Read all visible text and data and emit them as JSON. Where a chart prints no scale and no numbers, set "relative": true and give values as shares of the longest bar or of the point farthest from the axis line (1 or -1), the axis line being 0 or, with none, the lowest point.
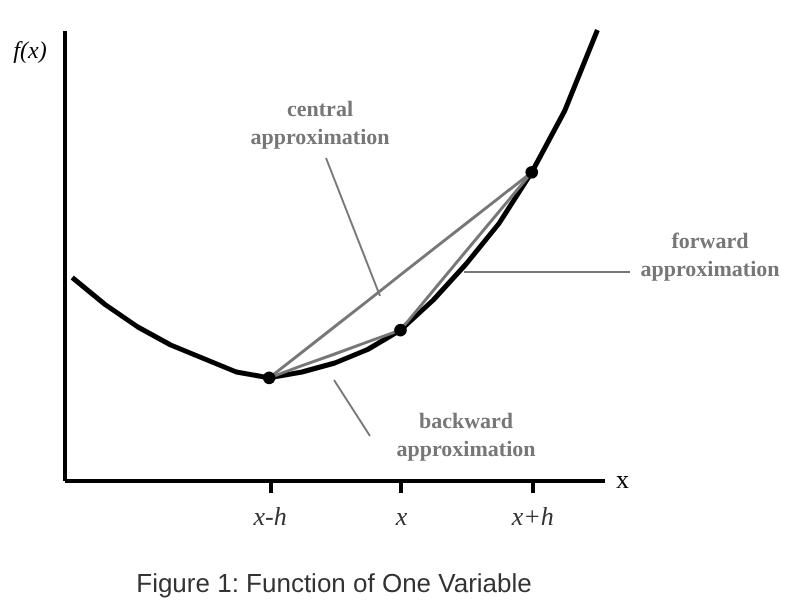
{
  "chart_data": {
    "type": "line",
    "relative": true,
    "xlabel": "x",
    "ylabel": "f(x)",
    "grid": false,
    "legend": false,
    "categories": [
      null,
      null,
      null,
      null,
      null,
      null,
      "x-h",
      null,
      null,
      null,
      "x",
      null,
      null,
      null,
      "x+h",
      null,
      null
    ],
    "series": [
      {
        "color": "#000000",
        "values": [
          0.45,
          0.39,
          0.34,
          0.3,
          0.27,
          0.24,
          0.227,
          0.24,
          0.26,
          0.29,
          0.333,
          0.4,
          0.48,
          0.57,
          0.684,
          0.82,
          1
        ]
      },
      {
        "type": "line",
        "name": "central approximation",
        "color": "#777777",
        "values": [
          null,
          null,
          null,
          null,
          null,
          null,
          0.227,
          0.284,
          0.341,
          0.398,
          0.456,
          0.513,
          0.57,
          0.627,
          0.684,
          null,
          null
        ]
      },
      {
        "type": "line",
        "name": "forward approximation",
        "color": "#777777",
        "values": [
          null,
          null,
          null,
          null,
          null,
          null,
          null,
          null,
          null,
          null,
          0.333,
          0.421,
          0.509,
          0.596,
          0.684,
          null,
          null
        ]
      },
      {
        "type": "line",
        "name": "backward approximation",
        "color": "#777777",
        "values": [
          null,
          null,
          null,
          null,
          null,
          null,
          0.227,
          0.254,
          0.28,
          0.307,
          0.333,
          null,
          null,
          null,
          null,
          null,
          null
        ]
      },
      {
        "type": "scatter",
        "color": "#000000",
        "marker": "circle",
        "values": [
          null,
          null,
          null,
          null,
          null,
          null,
          0.227,
          null,
          null,
          null,
          0.333,
          null,
          null,
          null,
          0.684,
          null,
          null
        ]
      }
    ],
    "annotations": [
      "Figure 1: Function of One Variable"
    ]
  }
}
